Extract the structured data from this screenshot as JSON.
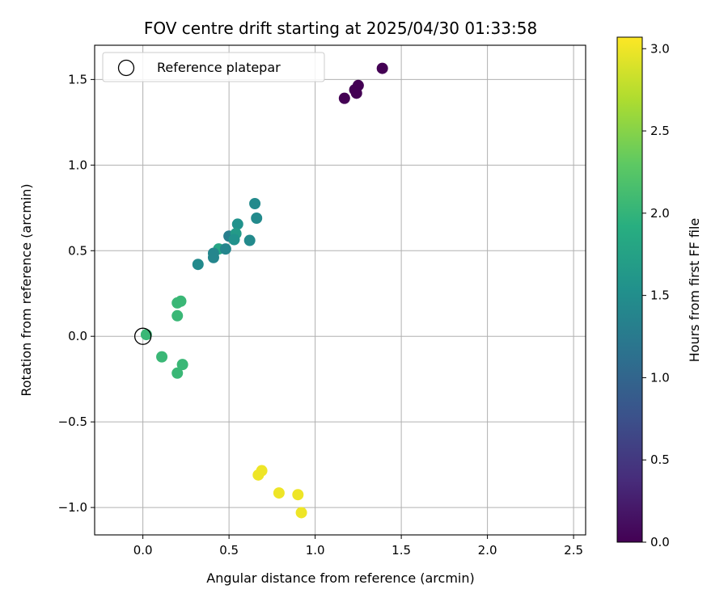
{
  "chart_data": {
    "type": "scatter",
    "title": "FOV centre drift starting at 2025/04/30 01:33:58",
    "xlabel": "Angular distance from reference (arcmin)",
    "ylabel": "Rotation from reference (arcmin)",
    "colorbar_label": "Hours from first FF file",
    "xlim": [
      -0.28,
      2.57
    ],
    "ylim": [
      -1.16,
      1.7
    ],
    "color_range": [
      0.0,
      3.07
    ],
    "colormap": "viridis",
    "grid": true,
    "legend_position": "top-left",
    "x_ticks": [
      {
        "value": 0.0,
        "label": "0.0"
      },
      {
        "value": 0.5,
        "label": "0.5"
      },
      {
        "value": 1.0,
        "label": "1.0"
      },
      {
        "value": 1.5,
        "label": "1.5"
      },
      {
        "value": 2.0,
        "label": "2.0"
      },
      {
        "value": 2.5,
        "label": "2.5"
      }
    ],
    "y_ticks": [
      {
        "value": -1.0,
        "label": "−1.0"
      },
      {
        "value": -0.5,
        "label": "−0.5"
      },
      {
        "value": 0.0,
        "label": "0.0"
      },
      {
        "value": 0.5,
        "label": "0.5"
      },
      {
        "value": 1.0,
        "label": "1.0"
      },
      {
        "value": 1.5,
        "label": "1.5"
      }
    ],
    "colorbar_ticks": [
      {
        "value": 0.0,
        "label": "0.0"
      },
      {
        "value": 0.5,
        "label": "0.5"
      },
      {
        "value": 1.0,
        "label": "1.0"
      },
      {
        "value": 1.5,
        "label": "1.5"
      },
      {
        "value": 2.0,
        "label": "2.0"
      },
      {
        "value": 2.5,
        "label": "2.5"
      },
      {
        "value": 3.0,
        "label": "3.0"
      }
    ],
    "reference": {
      "label": "Reference platepar",
      "x": 0.0,
      "y": 0.0
    },
    "points": [
      {
        "x": 1.39,
        "y": 1.565,
        "hours": 0.0
      },
      {
        "x": 1.25,
        "y": 1.465,
        "hours": 0.0
      },
      {
        "x": 1.23,
        "y": 1.44,
        "hours": 0.0
      },
      {
        "x": 1.24,
        "y": 1.42,
        "hours": 0.0
      },
      {
        "x": 1.17,
        "y": 1.39,
        "hours": 0.0
      },
      {
        "x": 0.65,
        "y": 0.775,
        "hours": 1.45
      },
      {
        "x": 0.66,
        "y": 0.69,
        "hours": 1.45
      },
      {
        "x": 0.55,
        "y": 0.655,
        "hours": 1.55
      },
      {
        "x": 0.5,
        "y": 0.585,
        "hours": 1.3
      },
      {
        "x": 0.54,
        "y": 0.6,
        "hours": 1.65
      },
      {
        "x": 0.53,
        "y": 0.565,
        "hours": 1.55
      },
      {
        "x": 0.62,
        "y": 0.56,
        "hours": 1.45
      },
      {
        "x": 0.44,
        "y": 0.51,
        "hours": 1.8
      },
      {
        "x": 0.48,
        "y": 0.51,
        "hours": 1.4
      },
      {
        "x": 0.41,
        "y": 0.485,
        "hours": 1.4
      },
      {
        "x": 0.41,
        "y": 0.46,
        "hours": 1.4
      },
      {
        "x": 0.32,
        "y": 0.42,
        "hours": 1.45
      },
      {
        "x": 0.22,
        "y": 0.205,
        "hours": 2.05
      },
      {
        "x": 0.2,
        "y": 0.195,
        "hours": 2.05
      },
      {
        "x": 0.2,
        "y": 0.12,
        "hours": 2.05
      },
      {
        "x": 0.02,
        "y": 0.01,
        "hours": 2.05
      },
      {
        "x": 0.11,
        "y": -0.12,
        "hours": 2.05
      },
      {
        "x": 0.23,
        "y": -0.165,
        "hours": 2.05
      },
      {
        "x": 0.2,
        "y": -0.215,
        "hours": 2.05
      },
      {
        "x": 0.69,
        "y": -0.785,
        "hours": 3.0
      },
      {
        "x": 0.67,
        "y": -0.81,
        "hours": 3.0
      },
      {
        "x": 0.79,
        "y": -0.915,
        "hours": 3.0
      },
      {
        "x": 0.9,
        "y": -0.925,
        "hours": 3.0
      },
      {
        "x": 0.92,
        "y": -1.03,
        "hours": 3.0
      }
    ]
  }
}
